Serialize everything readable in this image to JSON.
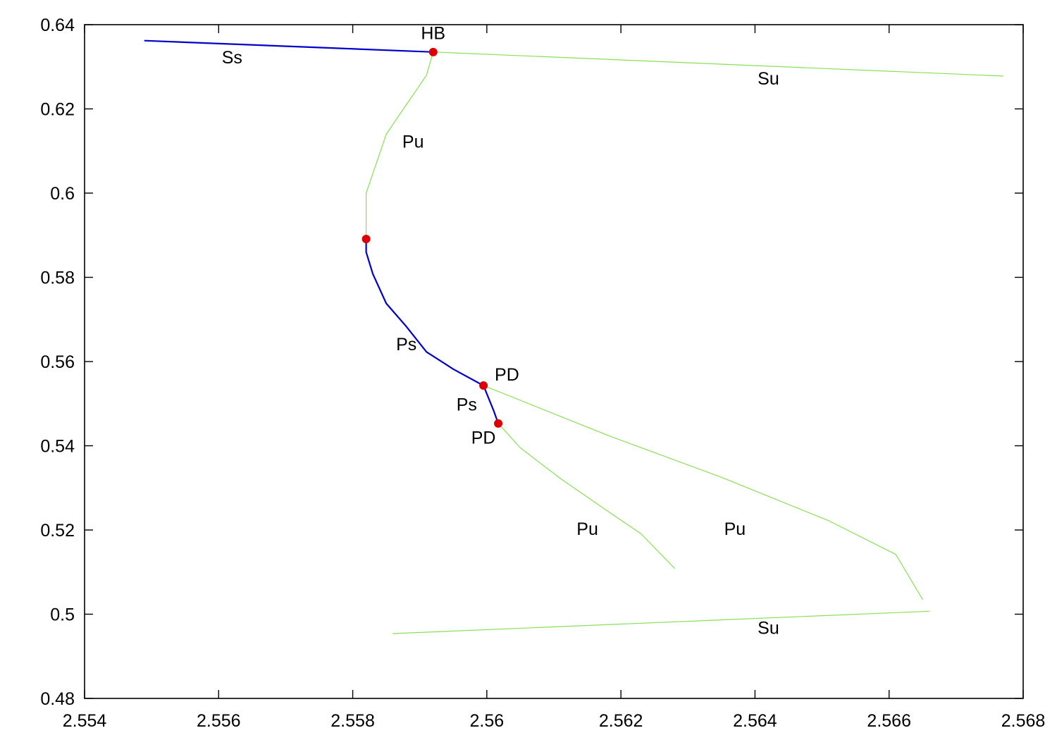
{
  "chart_data": {
    "type": "line",
    "title": "",
    "xlabel": "",
    "ylabel": "",
    "xlim": [
      2.554,
      2.568
    ],
    "ylim": [
      0.48,
      0.64
    ],
    "grid": false,
    "x_ticks": [
      "2.554",
      "2.556",
      "2.558",
      "2.56",
      "2.562",
      "2.564",
      "2.566",
      "2.568"
    ],
    "y_ticks": [
      "0.48",
      "0.5",
      "0.52",
      "0.54",
      "0.56",
      "0.58",
      "0.6",
      "0.62",
      "0.64"
    ],
    "colors": {
      "stable": "#0000cc",
      "unstable": "#88e055",
      "points": "#dd0000"
    },
    "series": [
      {
        "style": "stable",
        "points": [
          [
            2.5549,
            0.6362
          ],
          [
            2.5592,
            0.6335
          ]
        ]
      },
      {
        "style": "unstable",
        "points": [
          [
            2.5592,
            0.6335
          ],
          [
            2.5677,
            0.6278
          ]
        ]
      },
      {
        "style": "unstable",
        "points": [
          [
            2.5592,
            0.6335
          ],
          [
            2.5591,
            0.628
          ],
          [
            2.5588,
            0.621
          ],
          [
            2.5585,
            0.614
          ],
          [
            2.55835,
            0.607
          ],
          [
            2.5582,
            0.6
          ],
          [
            2.5582,
            0.595
          ],
          [
            2.5582,
            0.5891
          ]
        ]
      },
      {
        "style": "stable",
        "points": [
          [
            2.5582,
            0.5891
          ],
          [
            2.5582,
            0.586
          ],
          [
            2.5583,
            0.5808
          ],
          [
            2.5585,
            0.5738
          ],
          [
            2.5588,
            0.5683
          ],
          [
            2.5591,
            0.5623
          ],
          [
            2.5595,
            0.5582
          ],
          [
            2.55995,
            0.5543
          ]
        ]
      },
      {
        "style": "stable",
        "points": [
          [
            2.55995,
            0.5543
          ],
          [
            2.5601,
            0.5484
          ],
          [
            2.56017,
            0.5453
          ]
        ]
      },
      {
        "style": "unstable",
        "points": [
          [
            2.56017,
            0.5453
          ],
          [
            2.5605,
            0.5395
          ],
          [
            2.5611,
            0.5322
          ],
          [
            2.5618,
            0.5245
          ],
          [
            2.5623,
            0.5191
          ],
          [
            2.5628,
            0.5109
          ]
        ]
      },
      {
        "style": "unstable",
        "points": [
          [
            2.55995,
            0.5543
          ],
          [
            2.5605,
            0.5508
          ],
          [
            2.5618,
            0.5425
          ],
          [
            2.5635,
            0.5325
          ],
          [
            2.5651,
            0.5222
          ],
          [
            2.5661,
            0.5142
          ],
          [
            2.5665,
            0.5035
          ]
        ]
      },
      {
        "style": "unstable",
        "points": [
          [
            2.5586,
            0.4954
          ],
          [
            2.5666,
            0.5007
          ]
        ]
      }
    ],
    "special_points": [
      {
        "x": 2.5592,
        "y": 0.6335
      },
      {
        "x": 2.5582,
        "y": 0.5891
      },
      {
        "x": 2.55995,
        "y": 0.5543
      },
      {
        "x": 2.56017,
        "y": 0.5453
      }
    ],
    "annotations": [
      {
        "text": "HB",
        "x": 2.5592,
        "y": 0.6366
      },
      {
        "text": "Ss",
        "x": 2.5562,
        "y": 0.6308
      },
      {
        "text": "Su",
        "x": 2.5642,
        "y": 0.6258
      },
      {
        "text": "Pu",
        "x": 2.5589,
        "y": 0.6108
      },
      {
        "text": "Ps",
        "x": 2.5588,
        "y": 0.5627
      },
      {
        "text": "PD",
        "x": 2.5603,
        "y": 0.5555
      },
      {
        "text": "Ps",
        "x": 2.5597,
        "y": 0.5484
      },
      {
        "text": "PD",
        "x": 2.55995,
        "y": 0.5405
      },
      {
        "text": "Pu",
        "x": 2.5615,
        "y": 0.5188
      },
      {
        "text": "Pu",
        "x": 2.5637,
        "y": 0.5188
      },
      {
        "text": "Su",
        "x": 2.5642,
        "y": 0.4953
      }
    ]
  }
}
